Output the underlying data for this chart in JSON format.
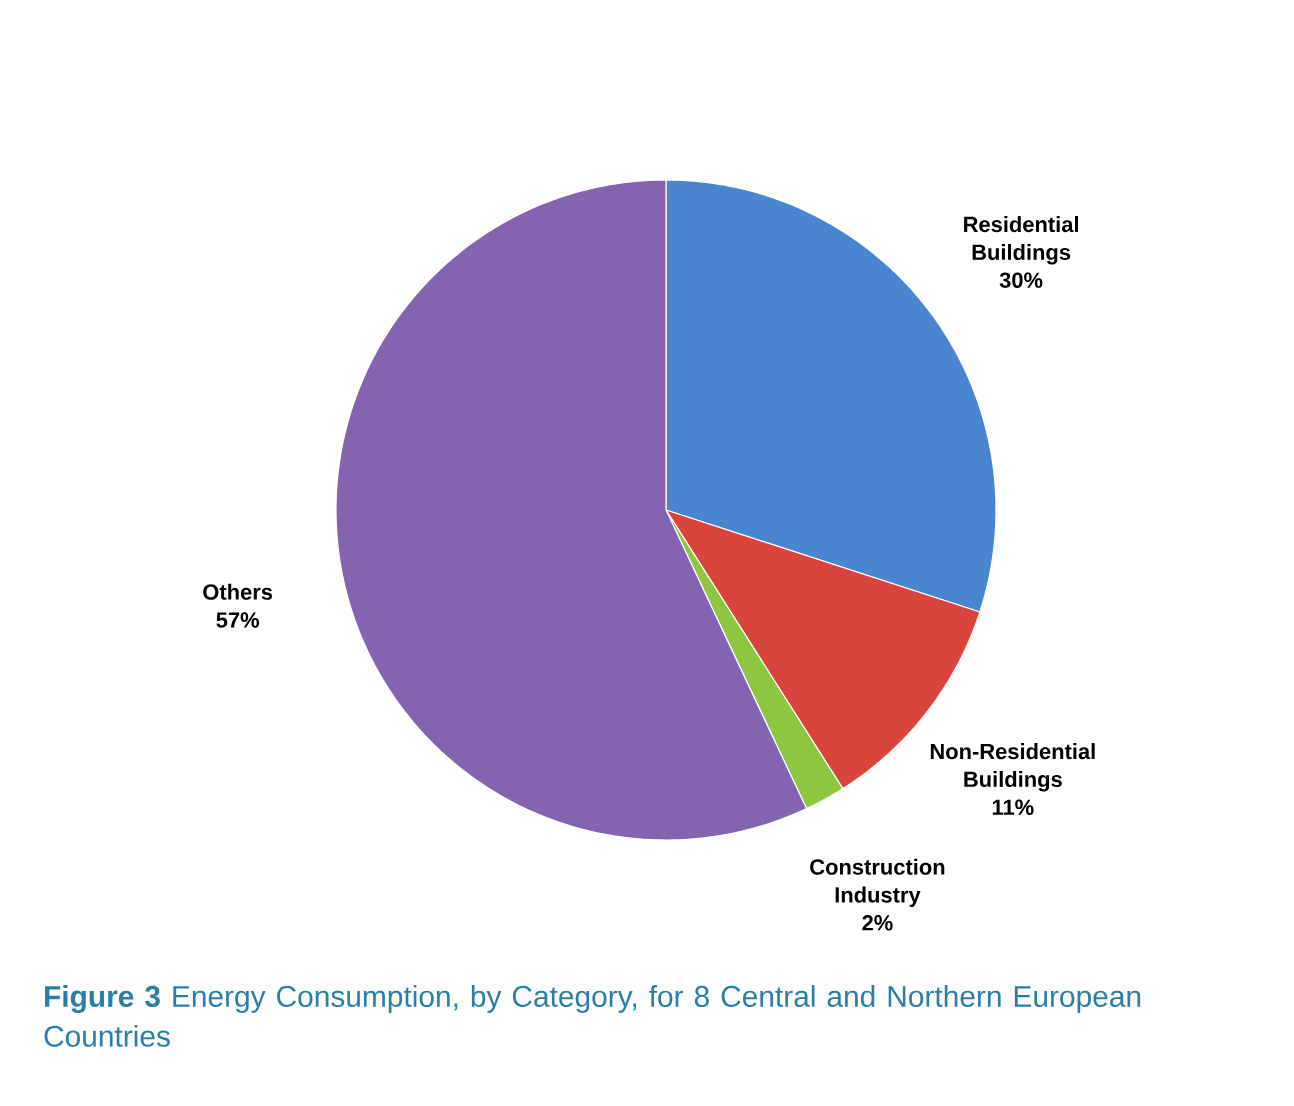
{
  "chart_data": {
    "type": "pie",
    "title": "**Figure 3** Energy Consumption, by Category, for 8 Central and Northern European Countries",
    "categories": [
      "Residential Buildings",
      "Non-Residential Buildings",
      "Construction Industry",
      "Others"
    ],
    "values": [
      30,
      11,
      2,
      57
    ],
    "value_labels": [
      "30%",
      "11%",
      "2%",
      "57%"
    ],
    "colors": [
      "#4a86d0",
      "#d9443c",
      "#8ec63f",
      "#8463b0"
    ]
  }
}
